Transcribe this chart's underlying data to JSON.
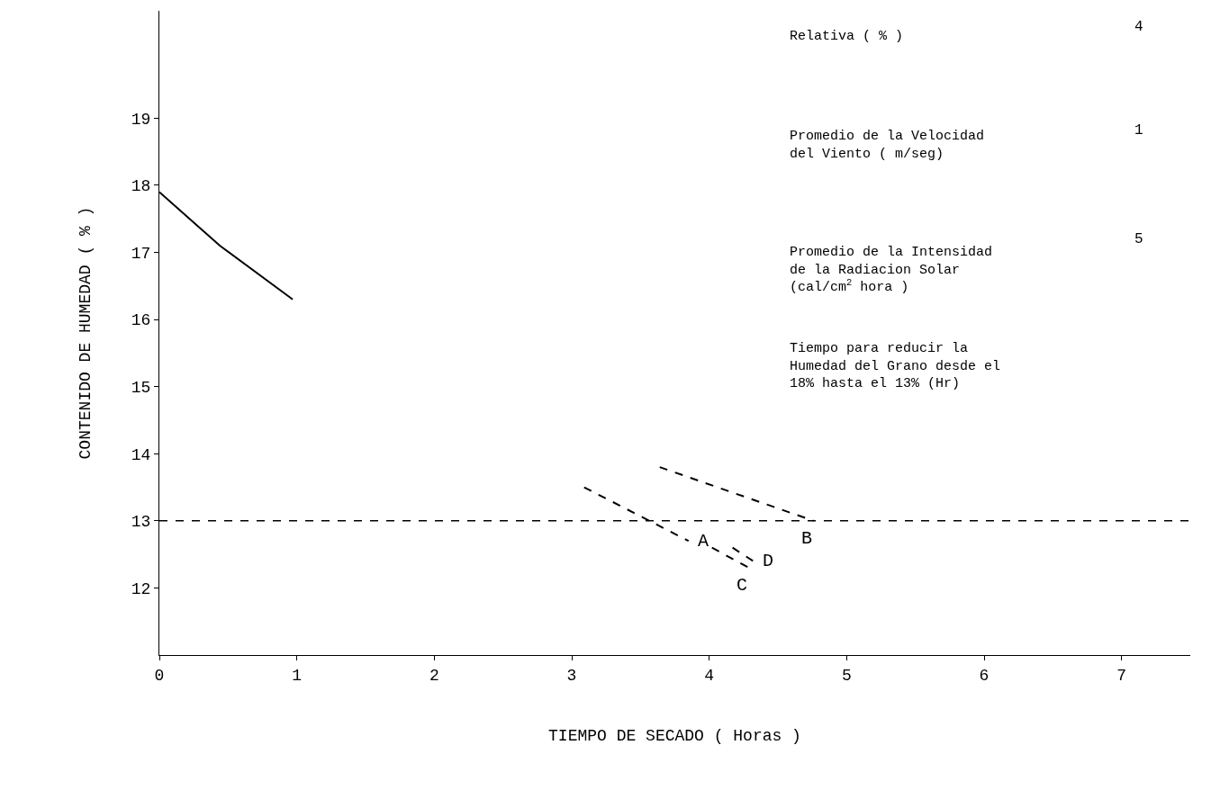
{
  "chart_data": {
    "type": "line",
    "xlabel": "TIEMPO DE SECADO ( Horas )",
    "ylabel": "CONTENIDO DE HUMEDAD ( % )",
    "xlim": [
      0,
      7.5
    ],
    "xticks": [
      0,
      1,
      2,
      3,
      4,
      5,
      6,
      7
    ],
    "ylim": [
      11,
      20.6
    ],
    "yticks": [
      12,
      13,
      14,
      15,
      16,
      17,
      18,
      19
    ],
    "legend": false,
    "marker": "none",
    "line_style": "dashed",
    "series": [
      {
        "color": "#000000",
        "line_style": "solid",
        "x": [
          0,
          0.44,
          0.97
        ],
        "values": [
          17.9,
          17.1,
          16.3
        ]
      },
      {
        "name": "B",
        "color": "#000000",
        "x": [
          3.64,
          4.76
        ],
        "values": [
          13.8,
          13.0
        ]
      },
      {
        "name": "A",
        "color": "#000000",
        "x": [
          3.09,
          3.85
        ],
        "values": [
          13.5,
          12.7
        ]
      },
      {
        "name": "C",
        "color": "#000000",
        "x": [
          4.02,
          4.29
        ],
        "values": [
          12.6,
          12.3
        ]
      },
      {
        "name": "D",
        "color": "#000000",
        "x": [
          4.17,
          4.32
        ],
        "values": [
          12.6,
          12.4
        ]
      }
    ],
    "ref_lines": [
      {
        "axis": "y",
        "value": 13,
        "color": "#000000",
        "line_style": "dashed"
      }
    ],
    "annotations": [
      "Relativa ( % )",
      "4",
      "Promedio de la Velocidad del Viento ( m/seg)",
      "1",
      "Promedio de la Intensidad de la Radiacion Solar (cal/cm$^{2}$ hora )",
      "5",
      "Tiempo para reducir la Humedad del Grano desde el 18% hasta el 13% (Hr)"
    ]
  }
}
